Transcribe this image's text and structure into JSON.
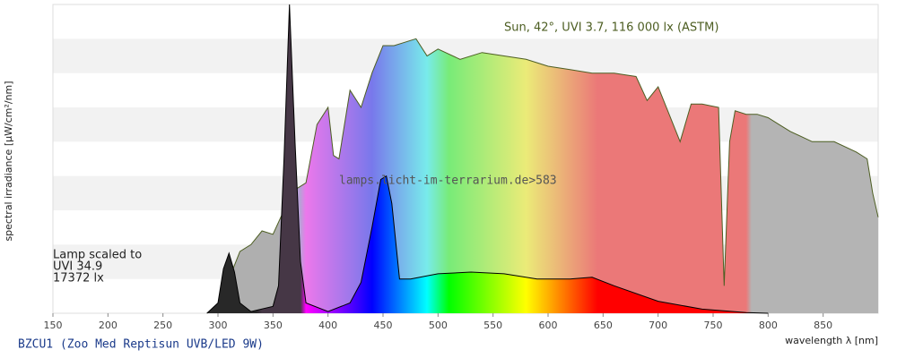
{
  "chart_data": {
    "type": "area",
    "xlabel": "wavelength λ [nm]",
    "ylabel": "spectral irradiance [µW/cm²/nm]",
    "xlim": [
      150,
      900
    ],
    "ylim": [
      0,
      9
    ],
    "xticks": [
      150,
      200,
      250,
      300,
      350,
      400,
      450,
      500,
      550,
      600,
      650,
      700,
      750,
      800,
      850
    ],
    "grid": true,
    "annotations": [
      "Lamp scaled to",
      "UVI 34.9",
      "17372 lx"
    ],
    "watermark": "lamps.licht-im-terrarium.de>583",
    "series": [
      {
        "name": "Sun, 42°, UVI 3.7, 116 000 lx (ASTM)",
        "color": "#4d5e22",
        "x": [
          290,
          300,
          310,
          320,
          330,
          340,
          350,
          360,
          370,
          380,
          390,
          400,
          405,
          410,
          420,
          430,
          440,
          450,
          460,
          470,
          480,
          490,
          500,
          520,
          540,
          560,
          580,
          600,
          620,
          640,
          660,
          680,
          690,
          700,
          720,
          730,
          740,
          755,
          760,
          765,
          770,
          780,
          790,
          800,
          810,
          820,
          840,
          860,
          880,
          890,
          895,
          900
        ],
        "values": [
          0,
          0.2,
          1.0,
          1.8,
          2.0,
          2.4,
          2.3,
          3.0,
          3.6,
          3.8,
          5.5,
          6.0,
          4.6,
          4.5,
          6.5,
          6.0,
          7.0,
          7.8,
          7.8,
          7.9,
          8.0,
          7.5,
          7.7,
          7.4,
          7.6,
          7.5,
          7.4,
          7.2,
          7.1,
          7.0,
          7.0,
          6.9,
          6.2,
          6.6,
          5.0,
          6.1,
          6.1,
          6.0,
          0.8,
          5.0,
          5.9,
          5.8,
          5.8,
          5.7,
          5.5,
          5.3,
          5.0,
          5.0,
          4.7,
          4.5,
          3.5,
          2.8
        ]
      },
      {
        "name": "BZCU1 (Zoo Med Reptisun UVB/LED 9W)",
        "color": "#000000",
        "x": [
          290,
          300,
          305,
          310,
          315,
          320,
          330,
          350,
          355,
          360,
          365,
          370,
          375,
          380,
          400,
          420,
          430,
          440,
          448,
          453,
          458,
          465,
          475,
          500,
          530,
          560,
          590,
          620,
          640,
          660,
          700,
          740,
          780,
          800
        ],
        "values": [
          0,
          0.3,
          1.3,
          1.75,
          1.2,
          0.3,
          0.05,
          0.2,
          0.8,
          4.5,
          9.0,
          5.0,
          1.5,
          0.3,
          0.05,
          0.3,
          0.9,
          2.5,
          3.9,
          4.0,
          3.2,
          1.0,
          1.0,
          1.15,
          1.2,
          1.15,
          1.0,
          1.0,
          1.05,
          0.8,
          0.35,
          0.12,
          0.02,
          0
        ]
      }
    ]
  }
}
